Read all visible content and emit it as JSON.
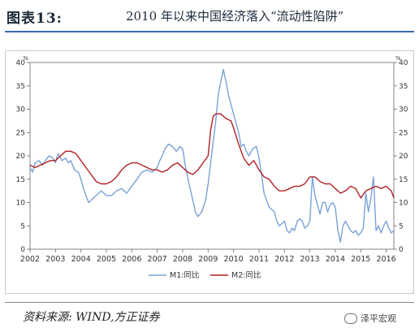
{
  "header": {
    "label": "图表13:",
    "title": "2010 年以来中国经济落入“流动性陷阱”"
  },
  "source": "资料来源: WIND,方正证券",
  "watermark": "泽平宏观",
  "colors": {
    "m1": "#7aa2d6",
    "m2": "#b11f24",
    "rule": "#3a6ab0"
  },
  "chart_data": {
    "type": "line",
    "x_tick_labels": [
      "2002",
      "2003",
      "2004",
      "2005",
      "2006",
      "2007",
      "2008",
      "2009",
      "2010",
      "2011",
      "2012",
      "2013",
      "2014",
      "2015",
      "2016"
    ],
    "xlim": [
      2002.0,
      2016.3
    ],
    "ylim": [
      0,
      40
    ],
    "y_ticks": [
      0,
      5,
      10,
      15,
      20,
      25,
      30,
      35,
      40
    ],
    "y_unit_left": "%",
    "y_unit_right": "%",
    "legend_position": "bottom-center",
    "series": [
      {
        "name": "M1:同比",
        "color": "#7aa2d6",
        "x": [
          2002.0,
          2002.1,
          2002.2,
          2002.35,
          2002.5,
          2002.6,
          2002.75,
          2002.9,
          2003.0,
          2003.1,
          2003.25,
          2003.4,
          2003.5,
          2003.6,
          2003.75,
          2003.9,
          2004.0,
          2004.1,
          2004.2,
          2004.3,
          2004.4,
          2004.6,
          2004.8,
          2005.0,
          2005.2,
          2005.4,
          2005.6,
          2005.8,
          2006.0,
          2006.2,
          2006.4,
          2006.6,
          2006.8,
          2007.0,
          2007.1,
          2007.2,
          2007.3,
          2007.45,
          2007.6,
          2007.75,
          2007.9,
          2008.0,
          2008.1,
          2008.25,
          2008.4,
          2008.5,
          2008.6,
          2008.75,
          2008.9,
          2009.0,
          2009.1,
          2009.2,
          2009.3,
          2009.4,
          2009.5,
          2009.6,
          2009.7,
          2009.8,
          2009.9,
          2010.0,
          2010.1,
          2010.2,
          2010.3,
          2010.4,
          2010.5,
          2010.6,
          2010.75,
          2010.9,
          2011.0,
          2011.1,
          2011.2,
          2011.3,
          2011.4,
          2011.5,
          2011.6,
          2011.7,
          2011.8,
          2011.9,
          2012.0,
          2012.1,
          2012.2,
          2012.3,
          2012.4,
          2012.5,
          2012.6,
          2012.7,
          2012.8,
          2012.9,
          2013.0,
          2013.1,
          2013.2,
          2013.3,
          2013.4,
          2013.5,
          2013.6,
          2013.7,
          2013.8,
          2013.9,
          2014.0,
          2014.1,
          2014.2,
          2014.3,
          2014.4,
          2014.5,
          2014.6,
          2014.7,
          2014.8,
          2014.9,
          2015.0,
          2015.1,
          2015.2,
          2015.3,
          2015.4,
          2015.5,
          2015.6,
          2015.7,
          2015.8,
          2015.9,
          2016.0,
          2016.1,
          2016.2,
          2016.3
        ],
        "values": [
          17.5,
          16.5,
          18.5,
          19.0,
          18.0,
          19.0,
          20.0,
          19.5,
          18.5,
          20.5,
          19.0,
          19.5,
          18.5,
          19.0,
          17.0,
          16.5,
          15.0,
          13.0,
          11.5,
          10.0,
          10.5,
          11.5,
          12.5,
          11.5,
          11.5,
          12.5,
          13.0,
          12.0,
          13.5,
          15.0,
          16.5,
          17.0,
          16.5,
          17.5,
          19.0,
          20.0,
          21.5,
          22.5,
          22.0,
          21.0,
          22.0,
          21.5,
          18.0,
          14.0,
          10.5,
          8.0,
          7.0,
          8.0,
          10.5,
          14.0,
          18.5,
          23.0,
          27.5,
          33.0,
          36.0,
          38.5,
          36.0,
          33.0,
          31.0,
          29.0,
          27.0,
          25.0,
          22.0,
          22.5,
          21.0,
          20.0,
          21.5,
          22.0,
          19.5,
          16.0,
          12.0,
          10.5,
          9.0,
          8.5,
          8.0,
          6.0,
          5.0,
          5.5,
          6.0,
          4.0,
          3.5,
          4.5,
          4.0,
          6.0,
          6.5,
          6.0,
          4.5,
          5.0,
          6.0,
          15.5,
          11.5,
          9.5,
          7.5,
          10.0,
          10.0,
          8.0,
          9.5,
          10.0,
          9.0,
          4.0,
          1.5,
          5.0,
          6.0,
          5.0,
          4.0,
          3.5,
          4.0,
          3.0,
          3.5,
          4.5,
          12.0,
          8.0,
          11.0,
          15.5,
          4.0,
          5.0,
          3.5,
          5.0,
          6.0,
          4.5,
          3.5,
          4.0
        ]
      },
      {
        "name": "M2:同比",
        "color": "#b11f24",
        "x": [
          2002.0,
          2002.2,
          2002.4,
          2002.6,
          2002.8,
          2003.0,
          2003.2,
          2003.4,
          2003.6,
          2003.8,
          2004.0,
          2004.2,
          2004.4,
          2004.6,
          2004.8,
          2005.0,
          2005.2,
          2005.4,
          2005.6,
          2005.8,
          2006.0,
          2006.2,
          2006.4,
          2006.6,
          2006.8,
          2007.0,
          2007.2,
          2007.4,
          2007.6,
          2007.8,
          2008.0,
          2008.2,
          2008.4,
          2008.6,
          2008.8,
          2009.0,
          2009.1,
          2009.2,
          2009.3,
          2009.5,
          2009.7,
          2009.9,
          2010.0,
          2010.2,
          2010.4,
          2010.6,
          2010.8,
          2011.0,
          2011.2,
          2011.4,
          2011.6,
          2011.8,
          2012.0,
          2012.2,
          2012.4,
          2012.6,
          2012.8,
          2013.0,
          2013.2,
          2013.4,
          2013.6,
          2013.8,
          2014.0,
          2014.2,
          2014.4,
          2014.6,
          2014.8,
          2015.0,
          2015.2,
          2015.4,
          2015.6,
          2015.8,
          2016.0,
          2016.2,
          2016.3
        ],
        "values": [
          18.0,
          17.5,
          18.0,
          18.5,
          19.0,
          19.0,
          20.0,
          21.0,
          21.0,
          20.5,
          19.0,
          17.5,
          16.0,
          14.5,
          14.0,
          14.0,
          14.5,
          15.5,
          17.0,
          18.0,
          18.5,
          18.5,
          18.0,
          17.5,
          17.0,
          17.0,
          16.5,
          17.0,
          18.0,
          18.5,
          17.5,
          16.5,
          16.0,
          17.0,
          18.5,
          20.0,
          25.5,
          28.5,
          29.0,
          29.0,
          28.0,
          27.5,
          26.0,
          22.5,
          19.5,
          18.0,
          19.0,
          17.0,
          15.5,
          15.0,
          13.5,
          12.5,
          12.5,
          13.0,
          13.5,
          13.5,
          14.0,
          15.5,
          15.5,
          14.5,
          14.0,
          14.0,
          13.0,
          12.0,
          12.5,
          13.5,
          13.0,
          11.0,
          12.5,
          13.0,
          13.5,
          13.0,
          13.5,
          12.5,
          11.0
        ]
      }
    ]
  }
}
